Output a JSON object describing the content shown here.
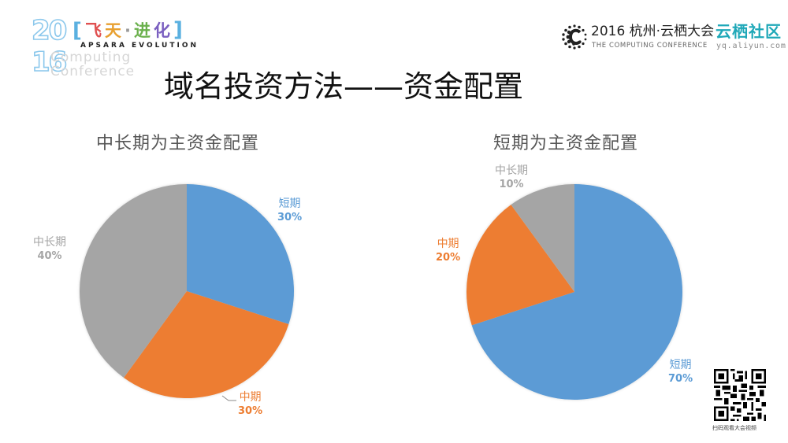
{
  "header": {
    "event_logo": {
      "year_top": "20",
      "year_bottom": "16",
      "name_cn": [
        "飞",
        "天",
        "·",
        "进",
        "化"
      ],
      "name_en": "APSARA EVOLUTION",
      "subtitle": "Computing\nConference"
    },
    "conference_logo": {
      "title": "2016 杭州·云栖大会",
      "subtitle": "THE COMPUTING CONFERENCE"
    },
    "community_logo": {
      "title": "云栖社区",
      "url": "yq.aliyun.com"
    }
  },
  "page_title": "域名投资方法——资金配置",
  "colors": {
    "short_term": "#5b9bd5",
    "mid_term": "#ed7d31",
    "long_term": "#a5a5a5",
    "title_text": "#595959"
  },
  "chart_data": [
    {
      "type": "pie",
      "title": "中长期为主资金配置",
      "categories": [
        "短期",
        "中期",
        "中长期"
      ],
      "values": [
        30,
        30,
        40
      ],
      "labels": [
        "30%",
        "30%",
        "40%"
      ],
      "start_angle_deg": 0,
      "direction": "clockwise",
      "legend": "none (data labels)"
    },
    {
      "type": "pie",
      "title": "短期为主资金配置",
      "categories": [
        "短期",
        "中期",
        "中长期"
      ],
      "values": [
        70,
        20,
        10
      ],
      "labels": [
        "70%",
        "20%",
        "10%"
      ],
      "start_angle_deg": 0,
      "direction": "clockwise",
      "legend": "none (data labels)"
    }
  ],
  "qr": {
    "caption": "扫码观看大会视频"
  }
}
